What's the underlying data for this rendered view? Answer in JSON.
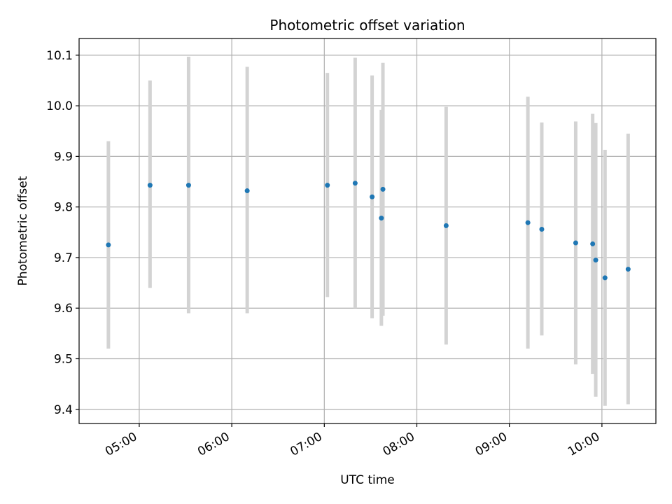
{
  "chart_data": {
    "type": "scatter",
    "title": "Photometric offset variation",
    "xlabel": "UTC time",
    "ylabel": "Photometric offset",
    "xlim": [
      "04:21",
      "10:35"
    ],
    "ylim": [
      9.372,
      10.133
    ],
    "grid": true,
    "x_ticks": [
      {
        "time": "05:00",
        "label": "05:00"
      },
      {
        "time": "06:00",
        "label": "06:00"
      },
      {
        "time": "07:00",
        "label": "07:00"
      },
      {
        "time": "08:00",
        "label": "08:00"
      },
      {
        "time": "09:00",
        "label": "09:00"
      },
      {
        "time": "10:00",
        "label": "10:00"
      }
    ],
    "y_ticks": [
      {
        "value": 9.4,
        "label": "9.4"
      },
      {
        "value": 9.5,
        "label": "9.5"
      },
      {
        "value": 9.6,
        "label": "9.6"
      },
      {
        "value": 9.7,
        "label": "9.7"
      },
      {
        "value": 9.8,
        "label": "9.8"
      },
      {
        "value": 9.9,
        "label": "9.9"
      },
      {
        "value": 10.0,
        "label": "10.0"
      },
      {
        "value": 10.1,
        "label": "10.1"
      }
    ],
    "series": [
      {
        "marker_color": "#1f77b4",
        "errorbar_color": "#d3d3d3",
        "points": [
          {
            "x": "04:40",
            "y": 9.725,
            "low": 9.52,
            "high": 9.93
          },
          {
            "x": "05:07",
            "y": 9.843,
            "low": 9.64,
            "high": 10.05
          },
          {
            "x": "05:32",
            "y": 9.843,
            "low": 9.59,
            "high": 10.097
          },
          {
            "x": "06:10",
            "y": 9.832,
            "low": 9.59,
            "high": 10.077
          },
          {
            "x": "07:02",
            "y": 9.843,
            "low": 9.622,
            "high": 10.065
          },
          {
            "x": "07:20",
            "y": 9.847,
            "low": 9.6,
            "high": 10.095
          },
          {
            "x": "07:31",
            "y": 9.82,
            "low": 9.58,
            "high": 10.06
          },
          {
            "x": "07:37",
            "y": 9.778,
            "low": 9.565,
            "high": 9.992
          },
          {
            "x": "07:38",
            "y": 9.835,
            "low": 9.585,
            "high": 10.085
          },
          {
            "x": "08:19",
            "y": 9.763,
            "low": 9.528,
            "high": 9.998
          },
          {
            "x": "09:12",
            "y": 9.769,
            "low": 9.52,
            "high": 10.018
          },
          {
            "x": "09:21",
            "y": 9.756,
            "low": 9.546,
            "high": 9.967
          },
          {
            "x": "09:43",
            "y": 9.729,
            "low": 9.489,
            "high": 9.969
          },
          {
            "x": "09:54",
            "y": 9.727,
            "low": 9.47,
            "high": 9.984
          },
          {
            "x": "09:56",
            "y": 9.695,
            "low": 9.425,
            "high": 9.966
          },
          {
            "x": "10:02",
            "y": 9.66,
            "low": 9.407,
            "high": 9.913
          },
          {
            "x": "10:17",
            "y": 9.677,
            "low": 9.41,
            "high": 9.945
          }
        ]
      }
    ]
  }
}
